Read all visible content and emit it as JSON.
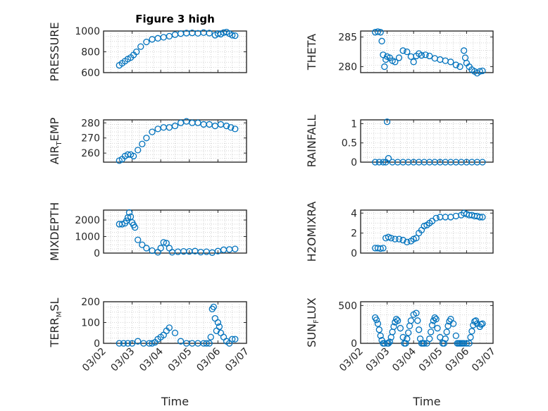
{
  "chart_data": [
    {
      "type": "scatter",
      "id": "pressure",
      "title": "Figure 3 high",
      "ylabel": "PRESSURE",
      "ylim": [
        600,
        1000
      ],
      "yticks": [
        "600",
        "800",
        "1000"
      ],
      "xlim": [
        0,
        5
      ],
      "xticks": [
        "03/02",
        "03/03",
        "03/04",
        "03/05",
        "03/06",
        "03/07"
      ],
      "xlabel": "",
      "series": [
        {
          "name": "PRESSURE",
          "x": [
            0.55,
            0.65,
            0.75,
            0.85,
            0.95,
            1.05,
            1.15,
            1.3,
            1.5,
            1.7,
            1.9,
            2.1,
            2.3,
            2.5,
            2.7,
            2.9,
            3.1,
            3.3,
            3.5,
            3.7,
            3.9,
            4.0,
            4.1,
            4.2,
            4.3,
            4.4,
            4.5,
            4.6
          ],
          "y": [
            670,
            690,
            710,
            730,
            745,
            770,
            800,
            850,
            895,
            920,
            930,
            940,
            950,
            965,
            975,
            980,
            982,
            978,
            985,
            980,
            960,
            975,
            970,
            985,
            990,
            975,
            960,
            955
          ]
        }
      ]
    },
    {
      "type": "scatter",
      "id": "theta",
      "title": "",
      "ylabel": "THETA",
      "ylim": [
        279,
        286
      ],
      "yticks": [
        "280",
        "285"
      ],
      "xlim": [
        0,
        5
      ],
      "xticks": [
        "03/02",
        "03/03",
        "03/04",
        "03/05",
        "03/06",
        "03/07"
      ],
      "xlabel": "",
      "series": [
        {
          "name": "THETA",
          "x": [
            0.55,
            0.65,
            0.75,
            0.8,
            0.85,
            0.9,
            0.95,
            1.0,
            1.1,
            1.2,
            1.3,
            1.45,
            1.6,
            1.75,
            1.9,
            2.0,
            2.1,
            2.2,
            2.3,
            2.45,
            2.6,
            2.8,
            3.0,
            3.2,
            3.4,
            3.6,
            3.75,
            3.9,
            3.95,
            4.0,
            4.1,
            4.2,
            4.3,
            4.4,
            4.5,
            4.6
          ],
          "y": [
            285.8,
            285.9,
            285.8,
            284.3,
            282.0,
            280.0,
            281.2,
            281.7,
            281.5,
            281.0,
            280.8,
            281.5,
            282.7,
            282.5,
            281.7,
            280.8,
            281.8,
            282.2,
            281.9,
            282.0,
            281.8,
            281.4,
            281.2,
            281.0,
            280.8,
            280.3,
            280.0,
            282.7,
            281.5,
            280.6,
            280.0,
            279.5,
            279.2,
            278.9,
            279.2,
            279.3
          ]
        }
      ]
    },
    {
      "type": "scatter",
      "id": "air_temp",
      "title": "",
      "ylabel": "AIR",
      "ylabel_sub": "T",
      "ylabel_tail": "EMP",
      "ylim": [
        254,
        282
      ],
      "yticks": [
        "260",
        "270",
        "280"
      ],
      "xlim": [
        0,
        5
      ],
      "xticks": [
        "03/02",
        "03/03",
        "03/04",
        "03/05",
        "03/06",
        "03/07"
      ],
      "xlabel": "",
      "series": [
        {
          "name": "AIR_TEMP",
          "x": [
            0.55,
            0.65,
            0.75,
            0.85,
            0.95,
            1.05,
            1.2,
            1.35,
            1.5,
            1.7,
            1.9,
            2.1,
            2.3,
            2.5,
            2.7,
            2.9,
            3.1,
            3.3,
            3.5,
            3.7,
            3.9,
            4.1,
            4.3,
            4.45,
            4.6
          ],
          "y": [
            255,
            256,
            258,
            259,
            259,
            258,
            262,
            266,
            270,
            274,
            276,
            277,
            277,
            278,
            280,
            281,
            280,
            280,
            279,
            279,
            278,
            279,
            278,
            277,
            276
          ]
        }
      ]
    },
    {
      "type": "scatter",
      "id": "rainfall",
      "title": "",
      "ylabel": "RAINFALL",
      "ylim": [
        0,
        1.1
      ],
      "yticks": [
        "0",
        "0.5",
        "1"
      ],
      "xlim": [
        0,
        5
      ],
      "xticks": [
        "03/02",
        "03/03",
        "03/04",
        "03/05",
        "03/06",
        "03/07"
      ],
      "xlabel": "",
      "series": [
        {
          "name": "RAINFALL",
          "x": [
            0.55,
            0.7,
            0.85,
            0.95,
            1.0,
            1.05,
            1.2,
            1.4,
            1.6,
            1.8,
            2.0,
            2.2,
            2.4,
            2.6,
            2.8,
            3.0,
            3.2,
            3.4,
            3.6,
            3.8,
            4.0,
            4.2,
            4.4,
            4.6
          ],
          "y": [
            0,
            0,
            0,
            0,
            1.05,
            0.1,
            0,
            0,
            0,
            0,
            0,
            0,
            0,
            0,
            0,
            0,
            0,
            0,
            0,
            0,
            0,
            0,
            0,
            0
          ]
        }
      ]
    },
    {
      "type": "scatter",
      "id": "mixdepth",
      "title": "",
      "ylabel": "MIXDEPTH",
      "ylim": [
        0,
        2600
      ],
      "yticks": [
        "0",
        "1000",
        "2000"
      ],
      "xlim": [
        0,
        5
      ],
      "xticks": [
        "03/02",
        "03/03",
        "03/04",
        "03/05",
        "03/06",
        "03/07"
      ],
      "xlabel": "",
      "series": [
        {
          "name": "MIXDEPTH",
          "x": [
            0.55,
            0.65,
            0.75,
            0.8,
            0.85,
            0.9,
            0.95,
            1.0,
            1.05,
            1.1,
            1.2,
            1.35,
            1.5,
            1.7,
            1.9,
            2.0,
            2.1,
            2.2,
            2.3,
            2.4,
            2.6,
            2.8,
            3.0,
            3.2,
            3.4,
            3.6,
            3.8,
            4.0,
            4.2,
            4.4,
            4.6
          ],
          "y": [
            1750,
            1750,
            1800,
            1950,
            2150,
            2450,
            2200,
            1850,
            1700,
            1550,
            800,
            500,
            300,
            150,
            50,
            300,
            650,
            600,
            300,
            50,
            80,
            100,
            100,
            120,
            60,
            80,
            30,
            120,
            200,
            220,
            250
          ]
        }
      ]
    },
    {
      "type": "scatter",
      "id": "h2omixra",
      "title": "",
      "ylabel": "H2OMIXRA",
      "ylim": [
        0,
        4.3
      ],
      "yticks": [
        "0",
        "2",
        "4"
      ],
      "xlim": [
        0,
        5
      ],
      "xticks": [
        "03/02",
        "03/03",
        "03/04",
        "03/05",
        "03/06",
        "03/07"
      ],
      "xlabel": "",
      "series": [
        {
          "name": "H2OMIXRA",
          "x": [
            0.55,
            0.65,
            0.75,
            0.85,
            0.95,
            1.05,
            1.15,
            1.3,
            1.45,
            1.6,
            1.75,
            1.9,
            2.0,
            2.1,
            2.2,
            2.3,
            2.4,
            2.5,
            2.6,
            2.7,
            2.85,
            3.0,
            3.2,
            3.4,
            3.6,
            3.8,
            3.9,
            4.0,
            4.1,
            4.2,
            4.3,
            4.4,
            4.5,
            4.6
          ],
          "y": [
            0.5,
            0.5,
            0.45,
            0.5,
            1.5,
            1.6,
            1.5,
            1.4,
            1.4,
            1.3,
            1.1,
            1.2,
            1.4,
            1.5,
            2.0,
            2.3,
            2.7,
            2.8,
            3.0,
            3.2,
            3.5,
            3.6,
            3.6,
            3.6,
            3.7,
            3.8,
            4.0,
            3.9,
            3.8,
            3.8,
            3.7,
            3.7,
            3.6,
            3.6
          ]
        }
      ]
    },
    {
      "type": "scatter",
      "id": "terr_msl",
      "title": "",
      "ylabel": "TERR",
      "ylabel_sub": "M",
      "ylabel_tail": "SL",
      "ylim": [
        0,
        200
      ],
      "yticks": [
        "0",
        "100",
        "200"
      ],
      "xlim": [
        0,
        5
      ],
      "xticks": [
        "03/02",
        "03/03",
        "03/04",
        "03/05",
        "03/06",
        "03/07"
      ],
      "xlabel": "Time",
      "series": [
        {
          "name": "TERR_MSL",
          "x": [
            0.55,
            0.7,
            0.85,
            1.0,
            1.2,
            1.4,
            1.6,
            1.7,
            1.8,
            1.9,
            2.0,
            2.1,
            2.2,
            2.3,
            2.5,
            2.7,
            2.9,
            3.1,
            3.3,
            3.5,
            3.6,
            3.7,
            3.75,
            3.8,
            3.85,
            3.9,
            3.95,
            4.0,
            4.05,
            4.1,
            4.2,
            4.3,
            4.4,
            4.5,
            4.6
          ],
          "y": [
            0,
            0,
            0,
            0,
            10,
            0,
            0,
            0,
            5,
            20,
            30,
            40,
            60,
            75,
            50,
            10,
            0,
            0,
            0,
            0,
            0,
            0,
            30,
            165,
            175,
            120,
            60,
            100,
            80,
            50,
            30,
            10,
            0,
            20,
            20
          ]
        }
      ]
    },
    {
      "type": "scatter",
      "id": "sun_flux",
      "title": "",
      "ylabel": "SUN",
      "ylabel_sub": "F",
      "ylabel_tail": "LUX",
      "ylim": [
        0,
        550
      ],
      "yticks": [
        "0",
        "500"
      ],
      "xlim": [
        0,
        5
      ],
      "xticks": [
        "03/02",
        "03/03",
        "03/04",
        "03/05",
        "03/06",
        "03/07"
      ],
      "xlabel": "Time",
      "series": [
        {
          "name": "SUN_FLUX",
          "x": [
            0.55,
            0.6,
            0.65,
            0.7,
            0.75,
            0.8,
            0.85,
            0.9,
            1.0,
            1.05,
            1.1,
            1.15,
            1.2,
            1.25,
            1.3,
            1.35,
            1.4,
            1.5,
            1.6,
            1.65,
            1.7,
            1.75,
            1.8,
            1.85,
            1.9,
            2.0,
            2.1,
            2.15,
            2.2,
            2.25,
            2.3,
            2.35,
            2.4,
            2.5,
            2.6,
            2.65,
            2.7,
            2.75,
            2.8,
            2.85,
            2.9,
            3.0,
            3.1,
            3.15,
            3.2,
            3.25,
            3.3,
            3.35,
            3.4,
            3.5,
            3.6,
            3.65,
            3.7,
            3.75,
            3.8,
            3.85,
            3.9,
            4.0,
            4.1,
            4.15,
            4.2,
            4.25,
            4.3,
            4.35,
            4.4,
            4.5,
            4.55,
            4.6
          ],
          "y": [
            340,
            310,
            260,
            180,
            100,
            40,
            0,
            0,
            0,
            0,
            20,
            80,
            150,
            220,
            280,
            320,
            300,
            200,
            80,
            0,
            0,
            60,
            140,
            230,
            300,
            380,
            400,
            300,
            180,
            60,
            0,
            0,
            0,
            0,
            60,
            150,
            240,
            300,
            340,
            320,
            200,
            80,
            0,
            0,
            60,
            150,
            230,
            290,
            320,
            260,
            100,
            0,
            0,
            0,
            0,
            0,
            0,
            0,
            0,
            80,
            160,
            240,
            290,
            300,
            260,
            220,
            250,
            260
          ]
        }
      ]
    }
  ]
}
